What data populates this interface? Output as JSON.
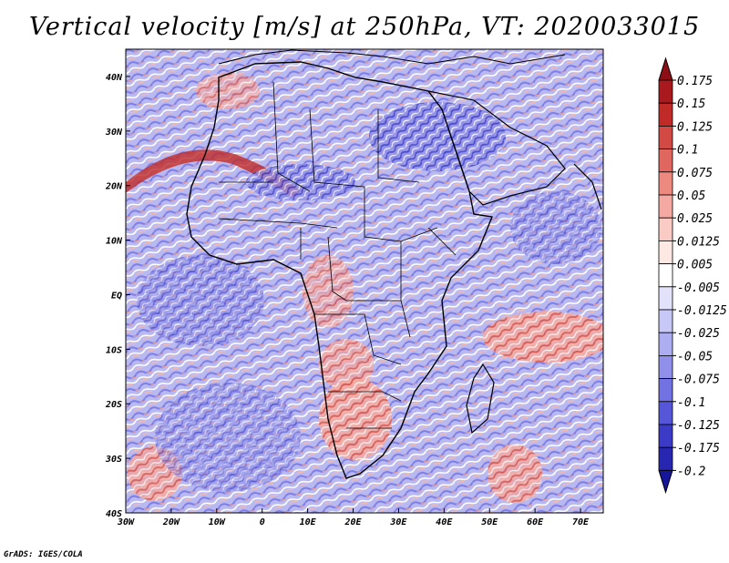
{
  "title": "Vertical velocity [m/s] at 250hPa, VT: 2020033015",
  "credit": "GrADS: IGES/COLA",
  "map": {
    "lon_range": [
      -30,
      75
    ],
    "lat_range": [
      -40,
      45
    ],
    "x_ticks": [
      "30W",
      "20W",
      "10W",
      "0",
      "10E",
      "20E",
      "30E",
      "40E",
      "50E",
      "60E",
      "70E"
    ],
    "y_ticks": [
      "40N",
      "30N",
      "20N",
      "10N",
      "EQ",
      "10S",
      "20S",
      "30S",
      "40S"
    ]
  },
  "colorbar": {
    "labels": [
      "0.175",
      "0.15",
      "0.125",
      "0.1",
      "0.075",
      "0.05",
      "0.025",
      "0.0125",
      "0.005",
      "-0.005",
      "-0.0125",
      "-0.025",
      "-0.05",
      "-0.075",
      "-0.1",
      "-0.125",
      "-0.175",
      "-0.2"
    ],
    "colors": [
      "#8b0f14",
      "#a81a1d",
      "#c02a27",
      "#d14a43",
      "#e0675f",
      "#ec8a80",
      "#f4aaa2",
      "#f9cbc4",
      "#fde8e4",
      "#ffffff",
      "#e2e2fb",
      "#c8c8f7",
      "#adadf1",
      "#9090ea",
      "#7272e2",
      "#5656d8",
      "#3b3bc8",
      "#2626b0",
      "#16169a"
    ]
  }
}
